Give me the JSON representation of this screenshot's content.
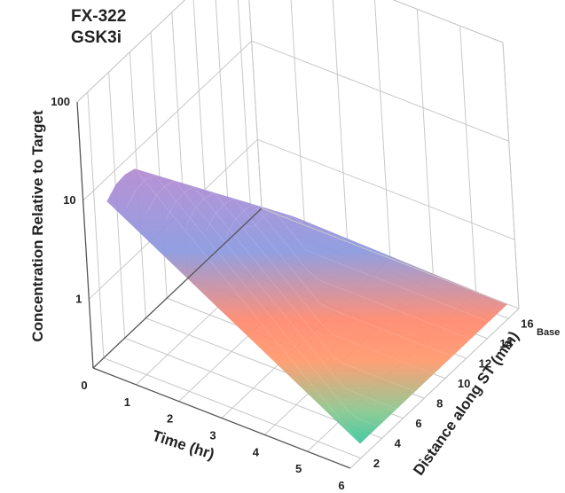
{
  "chart_data": {
    "type": "surface",
    "title_lines": [
      "FX-322",
      "GSK3i"
    ],
    "xlabel": "Time (hr)",
    "ylabel": "Distance along ST (mm)",
    "zlabel": "Concentration Relative to Target",
    "x_ticks": [
      "0",
      "1",
      "2",
      "3",
      "4",
      "5",
      "6"
    ],
    "y_ticks": [
      "2",
      "4",
      "6",
      "8",
      "10",
      "12",
      "14",
      "16"
    ],
    "z_ticks": [
      "1",
      "10",
      "100"
    ],
    "y_annotation": "Base",
    "xlim": [
      0,
      6
    ],
    "ylim": [
      1,
      17
    ],
    "zlim": [
      0.2,
      100
    ],
    "z_scale": "log",
    "grid": true,
    "colormap": [
      "#3cc8a0",
      "#8cc890",
      "#ff9a6e",
      "#ff8a70",
      "#8c9ae0",
      "#b48cd2"
    ],
    "surface": {
      "time_start": 0.3,
      "time_peak": 1.0,
      "distance_start": 2,
      "distance_end": 16,
      "peak_value": 25
    }
  }
}
